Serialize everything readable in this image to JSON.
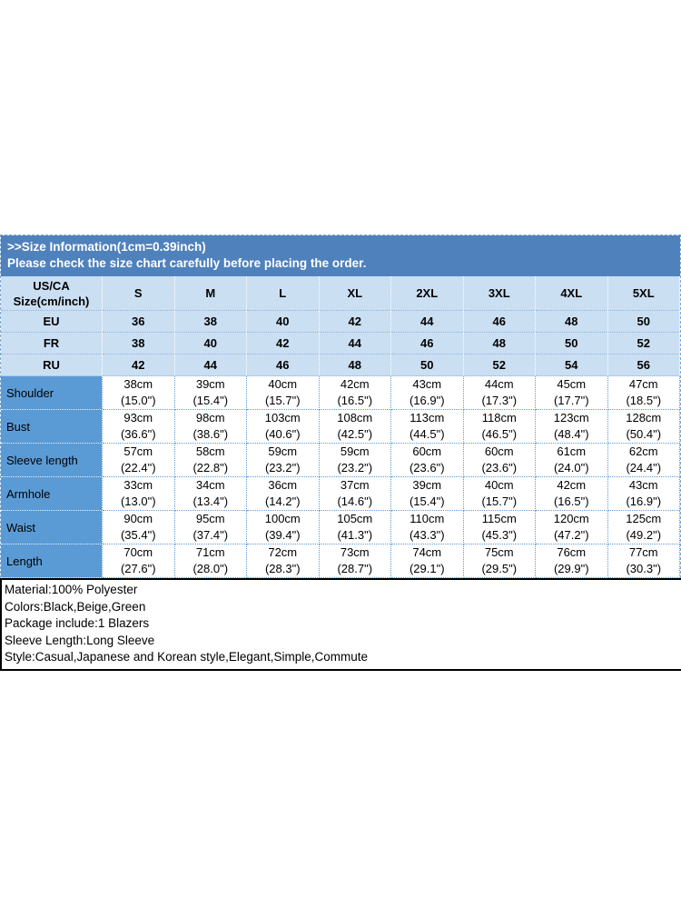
{
  "banner": {
    "line1": ">>Size Information(1cm=0.39inch)",
    "line2": "Please check the size chart carefully before placing the order."
  },
  "size_table": {
    "corner_header": "US/CA\nSize(cm/inch)",
    "size_headers": [
      "S",
      "M",
      "L",
      "XL",
      "2XL",
      "3XL",
      "4XL",
      "5XL"
    ],
    "region_rows": [
      {
        "label": "EU",
        "values": [
          "36",
          "38",
          "40",
          "42",
          "44",
          "46",
          "48",
          "50"
        ]
      },
      {
        "label": "FR",
        "values": [
          "38",
          "40",
          "42",
          "44",
          "46",
          "48",
          "50",
          "52"
        ]
      },
      {
        "label": "RU",
        "values": [
          "42",
          "44",
          "46",
          "48",
          "50",
          "52",
          "54",
          "56"
        ]
      }
    ],
    "measurement_rows": [
      {
        "label": "Shoulder",
        "cm": [
          "38cm",
          "39cm",
          "40cm",
          "42cm",
          "43cm",
          "44cm",
          "45cm",
          "47cm"
        ],
        "inch": [
          "(15.0\")",
          "(15.4\")",
          "(15.7\")",
          "(16.5\")",
          "(16.9\")",
          "(17.3\")",
          "(17.7\")",
          "(18.5\")"
        ]
      },
      {
        "label": "Bust",
        "cm": [
          "93cm",
          "98cm",
          "103cm",
          "108cm",
          "113cm",
          "118cm",
          "123cm",
          "128cm"
        ],
        "inch": [
          "(36.6\")",
          "(38.6\")",
          "(40.6\")",
          "(42.5\")",
          "(44.5\")",
          "(46.5\")",
          "(48.4\")",
          "(50.4\")"
        ]
      },
      {
        "label": "Sleeve length",
        "cm": [
          "57cm",
          "58cm",
          "59cm",
          "59cm",
          "60cm",
          "60cm",
          "61cm",
          "62cm"
        ],
        "inch": [
          "(22.4\")",
          "(22.8\")",
          "(23.2\")",
          "(23.2\")",
          "(23.6\")",
          "(23.6\")",
          "(24.0\")",
          "(24.4\")"
        ]
      },
      {
        "label": "Armhole",
        "cm": [
          "33cm",
          "34cm",
          "36cm",
          "37cm",
          "39cm",
          "40cm",
          "42cm",
          "43cm"
        ],
        "inch": [
          "(13.0\")",
          "(13.4\")",
          "(14.2\")",
          "(14.6\")",
          "(15.4\")",
          "(15.7\")",
          "(16.5\")",
          "(16.9\")"
        ]
      },
      {
        "label": "Waist",
        "cm": [
          "90cm",
          "95cm",
          "100cm",
          "105cm",
          "110cm",
          "115cm",
          "120cm",
          "125cm"
        ],
        "inch": [
          "(35.4\")",
          "(37.4\")",
          "(39.4\")",
          "(41.3\")",
          "(43.3\")",
          "(45.3\")",
          "(47.2\")",
          "(49.2\")"
        ]
      },
      {
        "label": "Length",
        "cm": [
          "70cm",
          "71cm",
          "72cm",
          "73cm",
          "74cm",
          "75cm",
          "76cm",
          "77cm"
        ],
        "inch": [
          "(27.6\")",
          "(28.0\")",
          "(28.3\")",
          "(28.7\")",
          "(29.1\")",
          "(29.5\")",
          "(29.9\")",
          "(30.3\")"
        ]
      }
    ]
  },
  "product_info": {
    "lines": [
      "Material:100% Polyester",
      "Colors:Black,Beige,Green",
      "Package include:1 Blazers",
      "Sleeve Length:Long Sleeve",
      "Style:Casual,Japanese and Korean style,Elegant,Simple,Commute"
    ]
  },
  "colors": {
    "banner_blue": "#4f81bd",
    "header_light_blue": "#cbdff2",
    "label_blue": "#5b9bd5",
    "body_border_blue": "#5b9bd5",
    "info_border": "#000000"
  }
}
